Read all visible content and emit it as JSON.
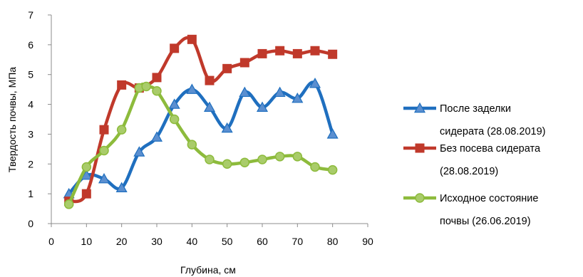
{
  "chart_data": {
    "type": "line",
    "title": "",
    "xlabel": "Глубина, см",
    "ylabel": "Твердость почвы, МПа",
    "xlim": [
      0,
      90
    ],
    "ylim": [
      0,
      7
    ],
    "xticks": [
      0,
      10,
      20,
      30,
      40,
      50,
      60,
      70,
      80,
      90
    ],
    "yticks": [
      0,
      1,
      2,
      3,
      4,
      5,
      6,
      7
    ],
    "grid": false,
    "legend_position": "right",
    "series": [
      {
        "name": "После заделки сидерата (28.08.2019)",
        "legend_lines": [
          "После заделки",
          "сидерата (28.08.2019)"
        ],
        "color": "#1f6fbf",
        "marker": "triangle",
        "x": [
          5,
          10,
          15,
          20,
          25,
          30,
          35,
          40,
          45,
          50,
          55,
          60,
          65,
          70,
          75,
          80
        ],
        "y": [
          1.0,
          1.62,
          1.5,
          1.2,
          2.4,
          2.9,
          4.0,
          4.5,
          3.9,
          3.2,
          4.4,
          3.9,
          4.4,
          4.2,
          4.7,
          3.0
        ]
      },
      {
        "name": "Без посева сидерата (28.08.2019)",
        "legend_lines": [
          "Без посева сидерата",
          "(28.08.2019)"
        ],
        "color": "#c0392b",
        "marker": "square",
        "x": [
          5,
          10,
          15,
          20,
          25,
          30,
          35,
          40,
          45,
          50,
          55,
          60,
          65,
          70,
          75,
          80
        ],
        "y": [
          0.75,
          1.0,
          3.15,
          4.65,
          4.55,
          4.9,
          5.88,
          6.18,
          4.8,
          5.2,
          5.4,
          5.7,
          5.8,
          5.7,
          5.8,
          5.68
        ]
      },
      {
        "name": "Исходное состояние почвы (26.06.2019)",
        "legend_lines": [
          "Исходное состояние",
          "почвы (26.06.2019)"
        ],
        "color": "#8dbb3c",
        "marker": "circle",
        "x": [
          5,
          10,
          15,
          20,
          25,
          27,
          30,
          35,
          40,
          45,
          50,
          55,
          60,
          65,
          70,
          75,
          80
        ],
        "y": [
          0.65,
          1.9,
          2.45,
          3.15,
          4.55,
          4.6,
          4.45,
          3.5,
          2.65,
          2.15,
          2.0,
          2.05,
          2.15,
          2.25,
          2.25,
          1.9,
          1.8
        ]
      }
    ]
  }
}
